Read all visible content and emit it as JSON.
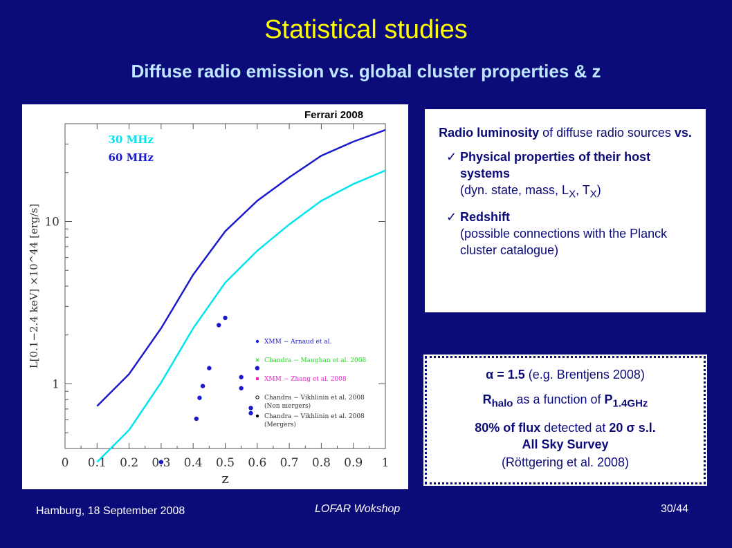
{
  "slide": {
    "title": "Statistical studies",
    "subtitle": "Diffuse radio emission vs. global cluster properties & z",
    "credit": "Ferrari 2008",
    "footer_left": "Hamburg, 18 September 2008",
    "footer_center": "LOFAR Wokshop",
    "footer_right": "30/44"
  },
  "box1": {
    "intro_bold1": "Radio luminosity",
    "intro_text1": " of diffuse radio sources ",
    "intro_bold2": "vs.",
    "check": "✓",
    "bullet1_bold": "Physical properties of their host systems",
    "bullet1_text": "(dyn. state, mass, L",
    "bullet1_sub1": "X",
    "bullet1_mid": ", T",
    "bullet1_sub2": "X",
    "bullet1_end": ")",
    "bullet2_bold": "Redshift",
    "bullet2_text": "(possible connections with the Planck cluster catalogue)"
  },
  "box2": {
    "alpha_bold": "α = 1.5",
    "alpha_text": " (e.g. Brentjens 2008)",
    "r_bold": "R",
    "r_sub": "halo",
    "r_text": " as a function of ",
    "p_bold": "P",
    "p_sub": "1.4GHz",
    "flux_bold": "80% of flux",
    "flux_text": " detected at ",
    "sigma_bold": "20 σ s.l.",
    "survey_bold": "All Sky Survey",
    "ref_text": "(Röttgering et al. 2008)"
  },
  "chart_data": {
    "type": "scatter",
    "xlabel": "z",
    "ylabel": "L[0.1−2.4 keV] ×10^44 [erg/s]",
    "xlim": [
      0,
      1.0
    ],
    "ylim": [
      0.4,
      40
    ],
    "yscale": "log",
    "xticks": [
      "0",
      "0.1",
      "0.2",
      "0.3",
      "0.4",
      "0.5",
      "0.6",
      "0.7",
      "0.8",
      "0.9",
      "1"
    ],
    "yticks": [
      "1",
      "10"
    ],
    "curve_labels": [
      "30 MHz",
      "60 MHz"
    ],
    "curve_colors": [
      "#00e5ee",
      "#1a1acc"
    ],
    "curves": [
      {
        "name": "30 MHz",
        "color": "#00e5ee",
        "points": [
          [
            0.1,
            0.33
          ],
          [
            0.2,
            0.52
          ],
          [
            0.3,
            1.02
          ],
          [
            0.4,
            2.2
          ],
          [
            0.5,
            4.2
          ],
          [
            0.6,
            6.6
          ],
          [
            0.7,
            9.6
          ],
          [
            0.8,
            13.4
          ],
          [
            0.9,
            17.0
          ],
          [
            1.0,
            20.6
          ]
        ]
      },
      {
        "name": "60 MHz",
        "color": "#1a1acc",
        "points": [
          [
            0.1,
            0.73
          ],
          [
            0.2,
            1.15
          ],
          [
            0.3,
            2.2
          ],
          [
            0.4,
            4.7
          ],
          [
            0.5,
            8.7
          ],
          [
            0.6,
            13.4
          ],
          [
            0.7,
            18.7
          ],
          [
            0.8,
            25.4
          ],
          [
            0.9,
            31.0
          ],
          [
            1.0,
            36.6
          ]
        ]
      }
    ],
    "legend_position": "bottom-right",
    "legend": [
      {
        "label": "XMM − Arnaud et al.",
        "marker": "dot",
        "color": "#1a1acc"
      },
      {
        "label": "Chandra − Maughan et al. 2008",
        "marker": "cross",
        "color": "#22dd22"
      },
      {
        "label": "XMM − Zhang et al. 2008",
        "marker": "square",
        "color": "#ee22cc"
      },
      {
        "label": "Chandra − Vikhlinin et al. 2008",
        "label2": "(Non mergers)",
        "marker": "circle",
        "color": "#000000"
      },
      {
        "label": "Chandra − Vikhlinin et al. 2008",
        "label2": "(Mergers)",
        "marker": "dot",
        "color": "#000000"
      }
    ],
    "series": [
      {
        "name": "XMM − Arnaud et al.",
        "marker": "dot",
        "color": "#1a1acc",
        "points": [
          [
            0.3,
            0.33
          ],
          [
            0.41,
            0.61
          ],
          [
            0.42,
            0.82
          ],
          [
            0.43,
            0.97
          ],
          [
            0.45,
            1.25
          ],
          [
            0.48,
            2.3
          ],
          [
            0.5,
            2.55
          ],
          [
            0.55,
            0.94
          ],
          [
            0.55,
            1.1
          ],
          [
            0.58,
            0.66
          ],
          [
            0.58,
            0.71
          ],
          [
            0.6,
            1.25
          ]
        ]
      }
    ]
  }
}
